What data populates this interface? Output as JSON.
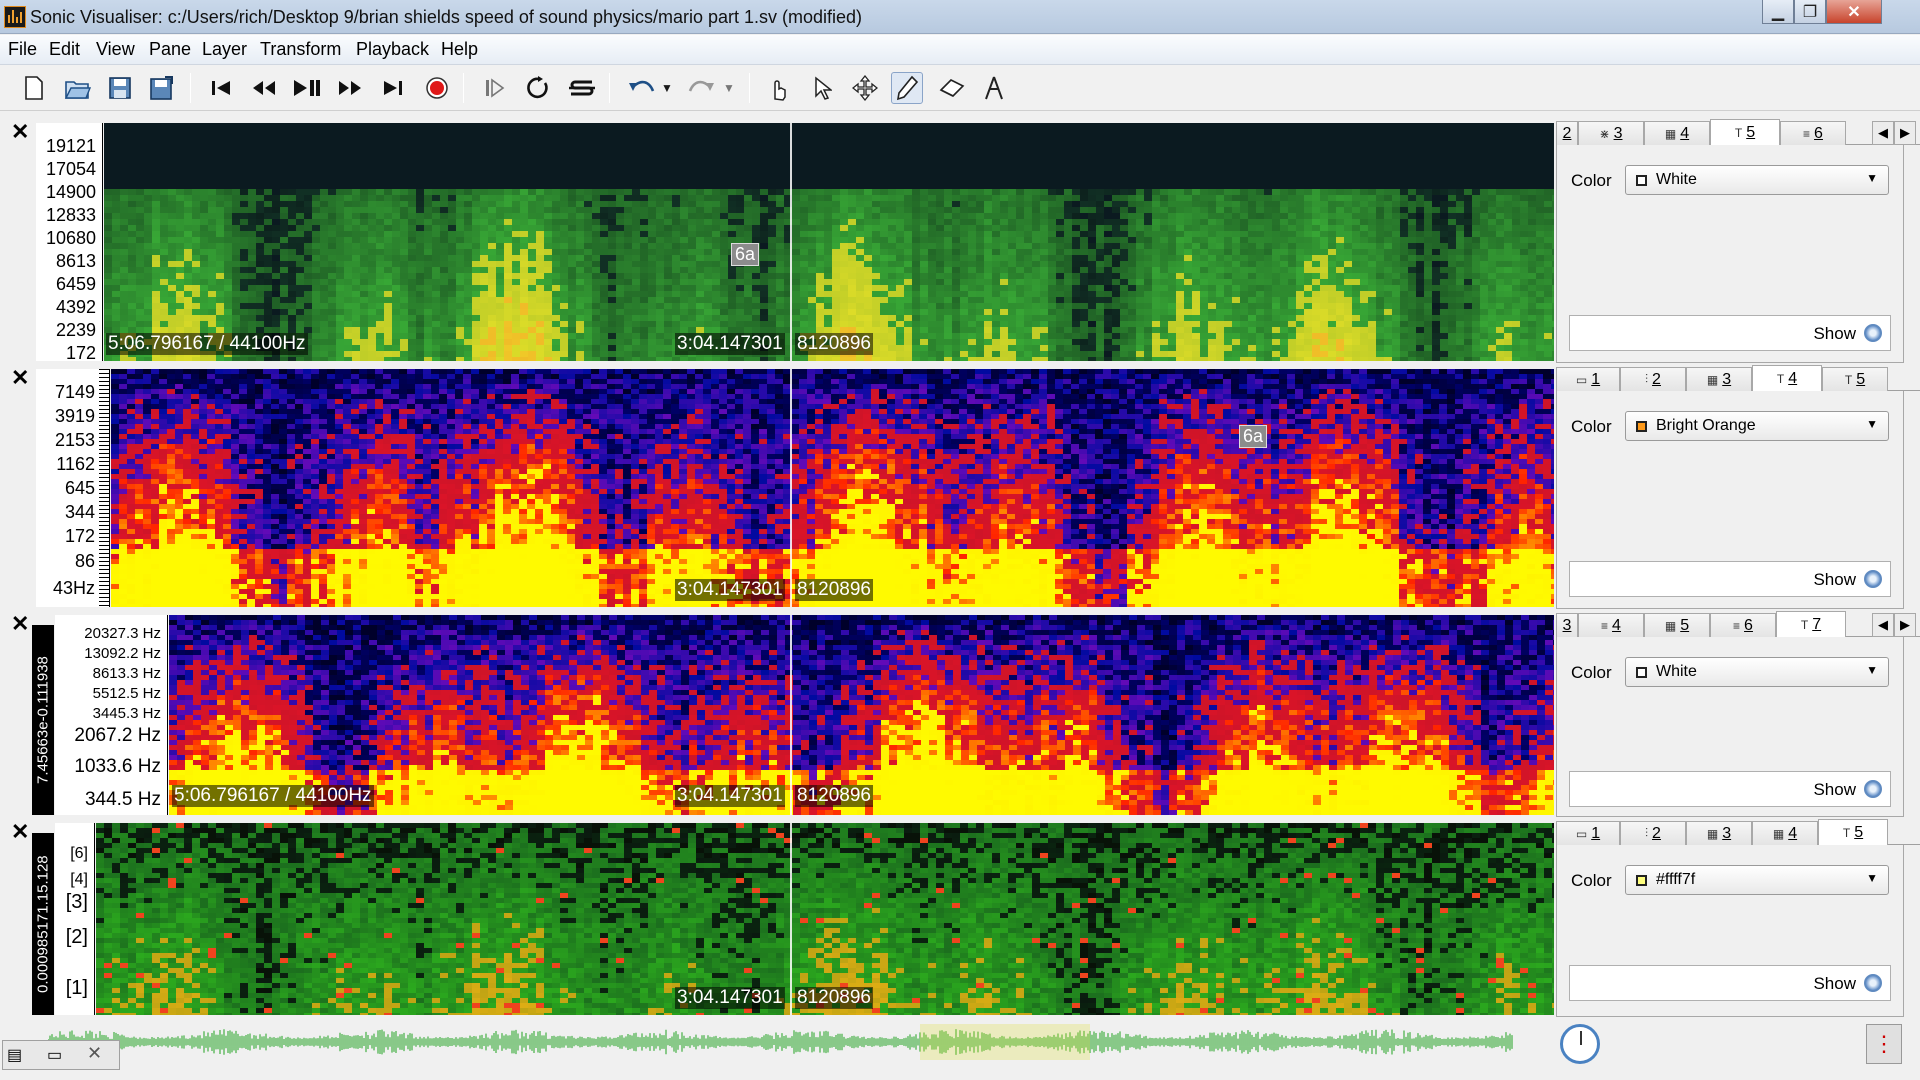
{
  "window": {
    "title": "Sonic Visualiser: c:/Users/rich/Desktop 9/brian shields speed of sound physics/mario part 1.sv (modified)",
    "minimize": "▁",
    "restore": "❐",
    "close": "✕"
  },
  "menus": [
    "File",
    "Edit",
    "View",
    "Pane",
    "Layer",
    "Transform",
    "Playback",
    "Help"
  ],
  "toolbar": {
    "file": [
      "new-icon",
      "open-icon",
      "save-icon",
      "save-as-icon"
    ],
    "transport": [
      "rewind-start-icon",
      "rewind-icon",
      "play-pause-icon",
      "fast-forward-icon",
      "ffwd-end-icon",
      "record-icon"
    ],
    "loop": [
      "play-selection-icon",
      "loop-icon",
      "solo-icon"
    ],
    "edit": [
      "undo-icon",
      "undo-dropdown-icon",
      "redo-icon",
      "redo-dropdown-icon"
    ],
    "tools": [
      "navigate-icon",
      "select-icon",
      "move-icon",
      "draw-icon",
      "erase-icon",
      "measure-icon"
    ],
    "active_tool": "draw-icon"
  },
  "common": {
    "close": "✕",
    "color_label": "Color",
    "show_label": "Show",
    "cursor_time": "3:04.147301",
    "cursor_frame": "8120896"
  },
  "panes": [
    {
      "scale": [
        "19121",
        "17054",
        "14900",
        "12833",
        "10680",
        "8613",
        "6459",
        "4392",
        "2239",
        "172"
      ],
      "info": "5:06.796167 / 44100Hz",
      "marker": "6a",
      "colormap": "green",
      "tabs": [
        {
          "n": "2",
          "glyph": ""
        },
        {
          "n": "3",
          "glyph": "⋇"
        },
        {
          "n": "4",
          "glyph": "▦"
        },
        {
          "n": "5",
          "glyph": "T",
          "sel": true
        },
        {
          "n": "6",
          "glyph": "≡"
        }
      ],
      "color": "White",
      "swatch": "#ffffff"
    },
    {
      "scale": [
        "7149",
        "3919",
        "2153",
        "1162",
        "645",
        "344",
        "172",
        "86",
        "43Hz"
      ],
      "info": "",
      "marker": "6a",
      "colormap": "sunset",
      "tabs": [
        {
          "n": "1",
          "glyph": "▭"
        },
        {
          "n": "2",
          "glyph": "⫶"
        },
        {
          "n": "3",
          "glyph": "▦"
        },
        {
          "n": "4",
          "glyph": "T",
          "sel": true
        },
        {
          "n": "5",
          "glyph": "T"
        }
      ],
      "color": "Bright Orange",
      "swatch": "#ff9a1a"
    },
    {
      "vertical": "7.45663e-0.111938",
      "scale": [
        "20327.3 Hz",
        "13092.2 Hz",
        "8613.3 Hz",
        "5512.5 Hz",
        "3445.3 Hz",
        "2067.2 Hz",
        "1033.6 Hz",
        "344.5 Hz"
      ],
      "info": "5:06.796167 / 44100Hz",
      "marker": "",
      "colormap": "sunset",
      "tabs": [
        {
          "n": "3",
          "glyph": ""
        },
        {
          "n": "4",
          "glyph": "≡"
        },
        {
          "n": "5",
          "glyph": "▦"
        },
        {
          "n": "6",
          "glyph": "≡"
        },
        {
          "n": "7",
          "glyph": "T",
          "sel": true
        }
      ],
      "color": "White",
      "swatch": "#ffffff"
    },
    {
      "vertical": "0.000985171.15.128",
      "scale": [
        "[6]",
        "[4]",
        "[3]",
        "[2]",
        "[1]"
      ],
      "info": "",
      "marker": "",
      "colormap": "chroma",
      "tabs": [
        {
          "n": "1",
          "glyph": "▭"
        },
        {
          "n": "2",
          "glyph": "⫶"
        },
        {
          "n": "3",
          "glyph": "▦"
        },
        {
          "n": "4",
          "glyph": "▦"
        },
        {
          "n": "5",
          "glyph": "T",
          "sel": true
        }
      ],
      "color": "#ffff7f",
      "swatch": "#ffff7f"
    }
  ]
}
